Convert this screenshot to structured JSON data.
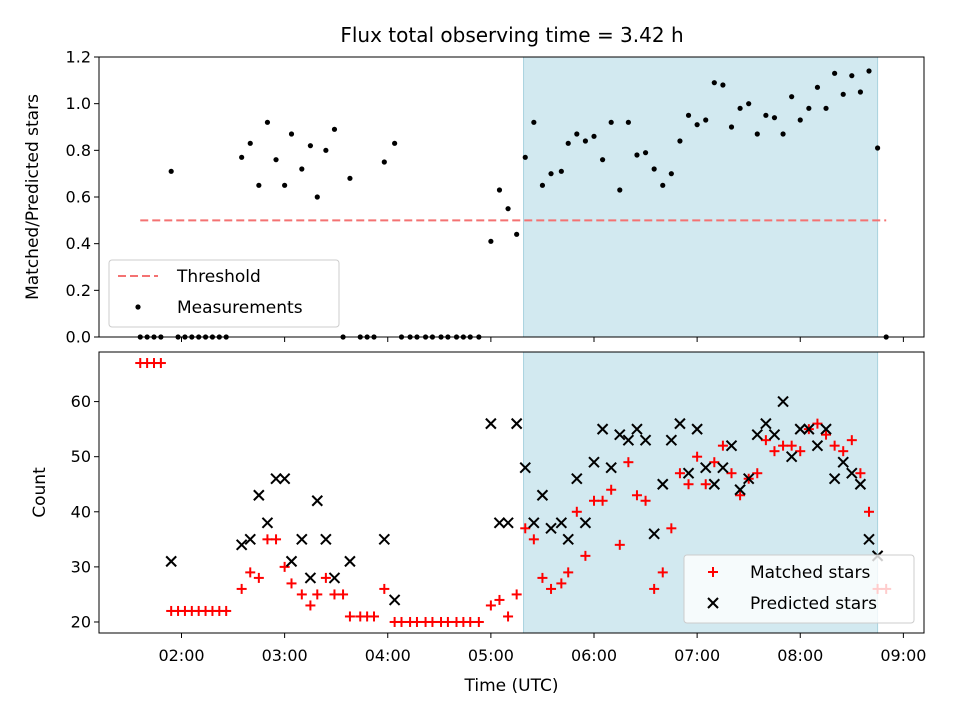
{
  "figure": {
    "title": "Flux total observing time = 3.42 h",
    "xlabel": "Time (UTC)"
  },
  "chart_data": [
    {
      "type": "scatter",
      "ylabel": "Matched/Predicted stars",
      "ylim": [
        0.0,
        1.2
      ],
      "yticks": [
        0.0,
        0.2,
        0.4,
        0.6,
        0.8,
        1.0,
        1.2
      ],
      "xlim": [
        "01:12",
        "09:12"
      ],
      "xticks": [
        "02:00",
        "03:00",
        "04:00",
        "05:00",
        "06:00",
        "07:00",
        "08:00",
        "09:00"
      ],
      "shaded_span": {
        "from": "05:19",
        "to": "08:45",
        "color": "#d2e9f0"
      },
      "legend_position": "lower-left",
      "colors": {
        "measurements": "#000000",
        "threshold": "#f47272"
      },
      "series": [
        {
          "name": "Threshold",
          "style": "dashed-line",
          "x": [
            "01:36",
            "08:50"
          ],
          "y": [
            0.5,
            0.5
          ]
        },
        {
          "name": "Measurements",
          "style": "dot",
          "points": [
            [
              "01:36",
              0.0
            ],
            [
              "01:40",
              0.0
            ],
            [
              "01:44",
              0.0
            ],
            [
              "01:48",
              0.0
            ],
            [
              "01:54",
              0.71
            ],
            [
              "01:58",
              0.0
            ],
            [
              "02:02",
              0.0
            ],
            [
              "02:06",
              0.0
            ],
            [
              "02:10",
              0.0
            ],
            [
              "02:14",
              0.0
            ],
            [
              "02:18",
              0.0
            ],
            [
              "02:22",
              0.0
            ],
            [
              "02:26",
              0.0
            ],
            [
              "02:35",
              0.77
            ],
            [
              "02:40",
              0.83
            ],
            [
              "02:45",
              0.65
            ],
            [
              "02:50",
              0.92
            ],
            [
              "02:55",
              0.76
            ],
            [
              "03:00",
              0.65
            ],
            [
              "03:04",
              0.87
            ],
            [
              "03:10",
              0.72
            ],
            [
              "03:15",
              0.82
            ],
            [
              "03:19",
              0.6
            ],
            [
              "03:24",
              0.8
            ],
            [
              "03:29",
              0.89
            ],
            [
              "03:34",
              0.0
            ],
            [
              "03:38",
              0.68
            ],
            [
              "03:44",
              0.0
            ],
            [
              "03:48",
              0.0
            ],
            [
              "03:52",
              0.0
            ],
            [
              "03:58",
              0.75
            ],
            [
              "04:04",
              0.83
            ],
            [
              "04:08",
              0.0
            ],
            [
              "04:13",
              0.0
            ],
            [
              "04:17",
              0.0
            ],
            [
              "04:22",
              0.0
            ],
            [
              "04:26",
              0.0
            ],
            [
              "04:31",
              0.0
            ],
            [
              "04:35",
              0.0
            ],
            [
              "04:40",
              0.0
            ],
            [
              "04:44",
              0.0
            ],
            [
              "04:48",
              0.0
            ],
            [
              "04:53",
              0.0
            ],
            [
              "05:00",
              0.41
            ],
            [
              "05:05",
              0.63
            ],
            [
              "05:10",
              0.55
            ],
            [
              "05:15",
              0.44
            ],
            [
              "05:20",
              0.77
            ],
            [
              "05:25",
              0.92
            ],
            [
              "05:30",
              0.65
            ],
            [
              "05:35",
              0.7
            ],
            [
              "05:41",
              0.71
            ],
            [
              "05:45",
              0.83
            ],
            [
              "05:50",
              0.87
            ],
            [
              "05:55",
              0.84
            ],
            [
              "06:00",
              0.86
            ],
            [
              "06:05",
              0.76
            ],
            [
              "06:10",
              0.92
            ],
            [
              "06:15",
              0.63
            ],
            [
              "06:20",
              0.92
            ],
            [
              "06:25",
              0.78
            ],
            [
              "06:30",
              0.79
            ],
            [
              "06:35",
              0.72
            ],
            [
              "06:40",
              0.65
            ],
            [
              "06:45",
              0.7
            ],
            [
              "06:50",
              0.84
            ],
            [
              "06:55",
              0.95
            ],
            [
              "07:00",
              0.91
            ],
            [
              "07:05",
              0.93
            ],
            [
              "07:10",
              1.09
            ],
            [
              "07:15",
              1.08
            ],
            [
              "07:20",
              0.9
            ],
            [
              "07:25",
              0.98
            ],
            [
              "07:30",
              1.0
            ],
            [
              "07:35",
              0.87
            ],
            [
              "07:40",
              0.95
            ],
            [
              "07:45",
              0.94
            ],
            [
              "07:50",
              0.87
            ],
            [
              "07:55",
              1.03
            ],
            [
              "08:00",
              0.93
            ],
            [
              "08:05",
              0.98
            ],
            [
              "08:10",
              1.07
            ],
            [
              "08:15",
              0.98
            ],
            [
              "08:20",
              1.13
            ],
            [
              "08:25",
              1.04
            ],
            [
              "08:30",
              1.12
            ],
            [
              "08:35",
              1.05
            ],
            [
              "08:40",
              1.14
            ],
            [
              "08:45",
              0.81
            ],
            [
              "08:50",
              0.0
            ]
          ]
        }
      ]
    },
    {
      "type": "scatter",
      "ylabel": "Count",
      "ylim": [
        18,
        69
      ],
      "yticks": [
        20,
        30,
        40,
        50,
        60
      ],
      "xlim": [
        "01:12",
        "09:12"
      ],
      "xticks": [
        "02:00",
        "03:00",
        "04:00",
        "05:00",
        "06:00",
        "07:00",
        "08:00",
        "09:00"
      ],
      "shaded_span": {
        "from": "05:19",
        "to": "08:45",
        "color": "#d2e9f0"
      },
      "legend_position": "lower-right",
      "colors": {
        "matched": "#ff0000",
        "predicted": "#000000"
      },
      "series": [
        {
          "name": "Matched stars",
          "marker": "plus",
          "points": [
            [
              "01:36",
              67
            ],
            [
              "01:40",
              67
            ],
            [
              "01:44",
              67
            ],
            [
              "01:48",
              67
            ],
            [
              "01:54",
              22
            ],
            [
              "01:58",
              22
            ],
            [
              "02:02",
              22
            ],
            [
              "02:06",
              22
            ],
            [
              "02:10",
              22
            ],
            [
              "02:14",
              22
            ],
            [
              "02:18",
              22
            ],
            [
              "02:22",
              22
            ],
            [
              "02:26",
              22
            ],
            [
              "02:35",
              26
            ],
            [
              "02:40",
              29
            ],
            [
              "02:45",
              28
            ],
            [
              "02:50",
              35
            ],
            [
              "02:55",
              35
            ],
            [
              "03:00",
              30
            ],
            [
              "03:04",
              27
            ],
            [
              "03:10",
              25
            ],
            [
              "03:15",
              23
            ],
            [
              "03:19",
              25
            ],
            [
              "03:24",
              28
            ],
            [
              "03:29",
              25
            ],
            [
              "03:34",
              25
            ],
            [
              "03:38",
              21
            ],
            [
              "03:44",
              21
            ],
            [
              "03:48",
              21
            ],
            [
              "03:52",
              21
            ],
            [
              "03:58",
              26
            ],
            [
              "04:04",
              20
            ],
            [
              "04:08",
              20
            ],
            [
              "04:13",
              20
            ],
            [
              "04:17",
              20
            ],
            [
              "04:22",
              20
            ],
            [
              "04:26",
              20
            ],
            [
              "04:31",
              20
            ],
            [
              "04:35",
              20
            ],
            [
              "04:40",
              20
            ],
            [
              "04:44",
              20
            ],
            [
              "04:48",
              20
            ],
            [
              "04:53",
              20
            ],
            [
              "05:00",
              23
            ],
            [
              "05:05",
              24
            ],
            [
              "05:10",
              21
            ],
            [
              "05:15",
              25
            ],
            [
              "05:20",
              37
            ],
            [
              "05:25",
              35
            ],
            [
              "05:30",
              28
            ],
            [
              "05:35",
              26
            ],
            [
              "05:41",
              27
            ],
            [
              "05:45",
              29
            ],
            [
              "05:50",
              40
            ],
            [
              "05:55",
              32
            ],
            [
              "06:00",
              42
            ],
            [
              "06:05",
              42
            ],
            [
              "06:10",
              44
            ],
            [
              "06:15",
              34
            ],
            [
              "06:20",
              49
            ],
            [
              "06:25",
              43
            ],
            [
              "06:30",
              42
            ],
            [
              "06:35",
              26
            ],
            [
              "06:40",
              29
            ],
            [
              "06:45",
              37
            ],
            [
              "06:50",
              47
            ],
            [
              "06:55",
              45
            ],
            [
              "07:00",
              50
            ],
            [
              "07:05",
              45
            ],
            [
              "07:10",
              49
            ],
            [
              "07:15",
              52
            ],
            [
              "07:20",
              47
            ],
            [
              "07:25",
              43
            ],
            [
              "07:30",
              46
            ],
            [
              "07:35",
              47
            ],
            [
              "07:40",
              53
            ],
            [
              "07:45",
              51
            ],
            [
              "07:50",
              52
            ],
            [
              "07:55",
              52
            ],
            [
              "08:00",
              51
            ],
            [
              "08:05",
              55
            ],
            [
              "08:10",
              56
            ],
            [
              "08:15",
              54
            ],
            [
              "08:20",
              52
            ],
            [
              "08:25",
              51
            ],
            [
              "08:30",
              53
            ],
            [
              "08:35",
              47
            ],
            [
              "08:40",
              40
            ],
            [
              "08:45",
              26
            ],
            [
              "08:50",
              26
            ]
          ]
        },
        {
          "name": "Predicted stars",
          "marker": "x",
          "points": [
            [
              "01:54",
              31
            ],
            [
              "02:35",
              34
            ],
            [
              "02:40",
              35
            ],
            [
              "02:45",
              43
            ],
            [
              "02:50",
              38
            ],
            [
              "02:55",
              46
            ],
            [
              "03:00",
              46
            ],
            [
              "03:04",
              31
            ],
            [
              "03:10",
              35
            ],
            [
              "03:15",
              28
            ],
            [
              "03:19",
              42
            ],
            [
              "03:24",
              35
            ],
            [
              "03:29",
              28
            ],
            [
              "03:38",
              31
            ],
            [
              "03:58",
              35
            ],
            [
              "04:04",
              24
            ],
            [
              "05:00",
              56
            ],
            [
              "05:05",
              38
            ],
            [
              "05:10",
              38
            ],
            [
              "05:15",
              56
            ],
            [
              "05:20",
              48
            ],
            [
              "05:25",
              38
            ],
            [
              "05:30",
              43
            ],
            [
              "05:35",
              37
            ],
            [
              "05:41",
              38
            ],
            [
              "05:45",
              35
            ],
            [
              "05:50",
              46
            ],
            [
              "05:55",
              38
            ],
            [
              "06:00",
              49
            ],
            [
              "06:05",
              55
            ],
            [
              "06:10",
              48
            ],
            [
              "06:15",
              54
            ],
            [
              "06:20",
              53
            ],
            [
              "06:25",
              55
            ],
            [
              "06:30",
              53
            ],
            [
              "06:35",
              36
            ],
            [
              "06:40",
              45
            ],
            [
              "06:45",
              53
            ],
            [
              "06:50",
              56
            ],
            [
              "06:55",
              47
            ],
            [
              "07:00",
              55
            ],
            [
              "07:05",
              48
            ],
            [
              "07:10",
              45
            ],
            [
              "07:15",
              48
            ],
            [
              "07:20",
              52
            ],
            [
              "07:25",
              44
            ],
            [
              "07:30",
              46
            ],
            [
              "07:35",
              54
            ],
            [
              "07:40",
              56
            ],
            [
              "07:45",
              54
            ],
            [
              "07:50",
              60
            ],
            [
              "07:55",
              50
            ],
            [
              "08:00",
              55
            ],
            [
              "08:05",
              55
            ],
            [
              "08:10",
              52
            ],
            [
              "08:15",
              55
            ],
            [
              "08:20",
              46
            ],
            [
              "08:25",
              49
            ],
            [
              "08:30",
              47
            ],
            [
              "08:35",
              45
            ],
            [
              "08:40",
              35
            ],
            [
              "08:45",
              32
            ]
          ]
        }
      ]
    }
  ]
}
